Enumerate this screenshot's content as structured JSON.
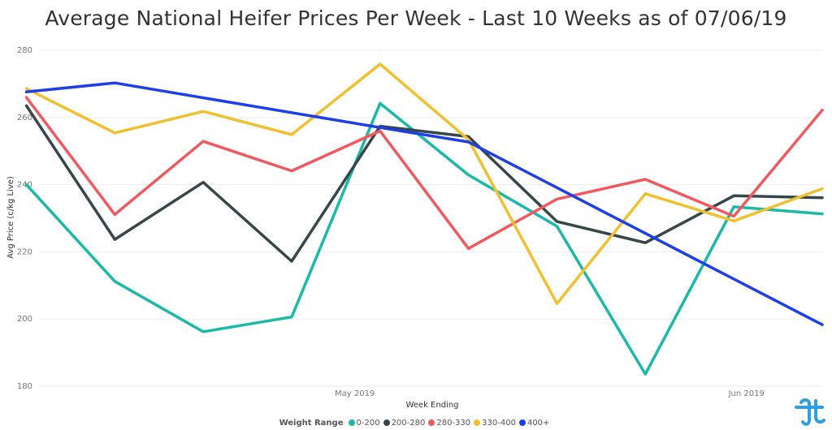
{
  "chart_data": {
    "type": "line",
    "title": "Average National Heifer Prices Per Week - Last 10 Weeks as of 07/06/19",
    "xlabel": "Week Ending",
    "ylabel": "Avg Price (c/kg Live)",
    "ylim": [
      180,
      280
    ],
    "yticks": [
      180,
      200,
      220,
      240,
      260,
      280
    ],
    "xlim": [
      "2019-04-06",
      "2019-06-07"
    ],
    "xticks": [
      {
        "date": "2019-05-01",
        "label": "May 2019"
      },
      {
        "date": "2019-06-01",
        "label": "Jun 2019"
      }
    ],
    "x": [
      "2019-04-05",
      "2019-04-12",
      "2019-04-19",
      "2019-04-26",
      "2019-05-03",
      "2019-05-10",
      "2019-05-17",
      "2019-05-24",
      "2019-05-31",
      "2019-06-07"
    ],
    "legend_title": "Weight Range",
    "legend_position": "bottom",
    "grid": "horizontal",
    "series": [
      {
        "name": "0-200",
        "color": "#1ab9a8",
        "values": [
          240.0,
          211.2,
          196.2,
          200.6,
          264.2,
          242.9,
          227.6,
          183.6,
          233.4,
          231.3
        ]
      },
      {
        "name": "200-280",
        "color": "#374649",
        "values": [
          263.5,
          223.7,
          240.7,
          217.2,
          257.4,
          254.3,
          229.0,
          222.7,
          236.7,
          236.1
        ]
      },
      {
        "name": "280-330",
        "color": "#f0595f",
        "values": [
          266.0,
          231.1,
          252.9,
          244.1,
          256.0,
          221.0,
          235.7,
          241.6,
          230.6,
          262.2
        ]
      },
      {
        "name": "330-400",
        "color": "#f0c02f",
        "values": [
          268.6,
          255.4,
          261.8,
          254.9,
          275.9,
          253.4,
          204.6,
          237.3,
          229.2,
          238.8
        ]
      },
      {
        "name": "400+",
        "color": "#1f3fe6",
        "values": [
          267.6,
          270.3,
          null,
          null,
          257.0,
          252.7,
          null,
          null,
          null,
          198.3
        ]
      }
    ]
  }
}
